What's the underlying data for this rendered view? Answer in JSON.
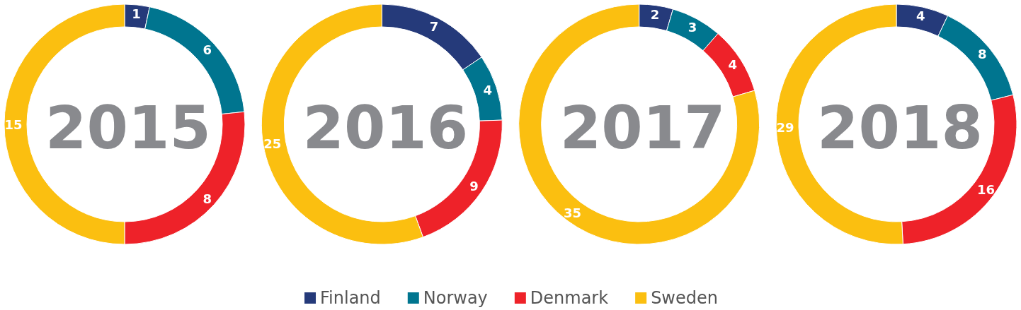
{
  "chart_data": {
    "type": "donut",
    "categories": [
      "Finland",
      "Norway",
      "Denmark",
      "Sweden"
    ],
    "colors": [
      "#253a7a",
      "#00758f",
      "#ee2229",
      "#fbbf10"
    ],
    "data_labels": true,
    "legend": "bottom",
    "series": [
      {
        "name": "2015",
        "values": [
          1,
          6,
          8,
          15
        ]
      },
      {
        "name": "2016",
        "values": [
          7,
          4,
          9,
          25
        ]
      },
      {
        "name": "2017",
        "values": [
          2,
          3,
          4,
          35
        ]
      },
      {
        "name": "2018",
        "values": [
          4,
          8,
          16,
          29
        ]
      }
    ]
  }
}
